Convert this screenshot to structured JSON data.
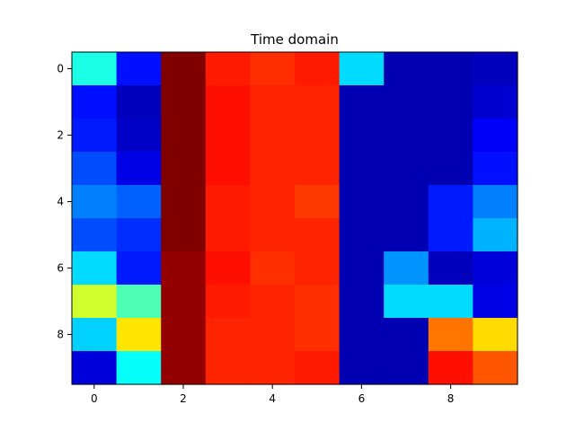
{
  "chart_data": {
    "type": "heatmap",
    "title": "Time domain",
    "xlabel": "",
    "ylabel": "",
    "colormap": "jet",
    "value_range": [
      0,
      1
    ],
    "rows": 10,
    "cols": 10,
    "x_ticks": [
      0,
      2,
      4,
      6,
      8
    ],
    "y_ticks": [
      0,
      2,
      4,
      6,
      8
    ],
    "x_tick_labels": [
      "0",
      "2",
      "4",
      "6",
      "8"
    ],
    "y_tick_labels": [
      "0",
      "2",
      "4",
      "6",
      "8"
    ],
    "grid": false,
    "legend": "none",
    "values": [
      [
        0.4,
        0.14,
        1.0,
        0.85,
        0.83,
        0.85,
        0.34,
        0.05,
        0.05,
        0.06
      ],
      [
        0.14,
        0.06,
        1.0,
        0.86,
        0.84,
        0.84,
        0.05,
        0.05,
        0.05,
        0.08
      ],
      [
        0.15,
        0.07,
        1.0,
        0.86,
        0.84,
        0.84,
        0.05,
        0.05,
        0.05,
        0.12
      ],
      [
        0.2,
        0.1,
        1.0,
        0.86,
        0.84,
        0.84,
        0.05,
        0.05,
        0.05,
        0.14
      ],
      [
        0.25,
        0.22,
        1.0,
        0.85,
        0.84,
        0.82,
        0.05,
        0.05,
        0.15,
        0.25
      ],
      [
        0.2,
        0.17,
        1.0,
        0.85,
        0.84,
        0.84,
        0.05,
        0.05,
        0.15,
        0.3
      ],
      [
        0.34,
        0.15,
        0.98,
        0.86,
        0.83,
        0.84,
        0.05,
        0.27,
        0.06,
        0.09
      ],
      [
        0.58,
        0.45,
        0.98,
        0.85,
        0.84,
        0.83,
        0.05,
        0.34,
        0.34,
        0.1
      ],
      [
        0.33,
        0.65,
        0.98,
        0.84,
        0.84,
        0.83,
        0.05,
        0.05,
        0.76,
        0.66
      ],
      [
        0.09,
        0.38,
        0.98,
        0.84,
        0.84,
        0.85,
        0.05,
        0.05,
        0.86,
        0.79
      ]
    ]
  }
}
